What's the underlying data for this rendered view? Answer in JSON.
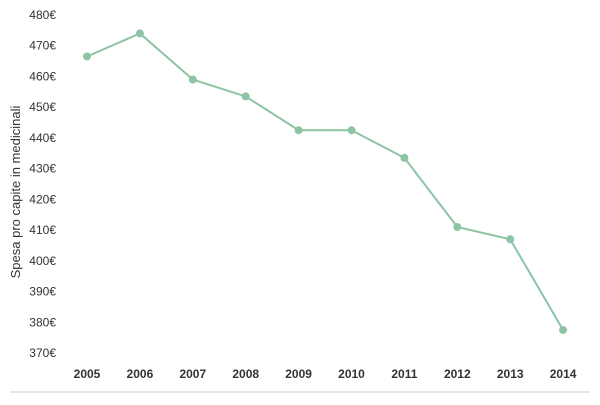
{
  "chart_data": {
    "type": "line",
    "title": "",
    "xlabel": "",
    "ylabel": "Spesa pro capite in medicinali",
    "y_unit_suffix": "€",
    "ylim": [
      370,
      480
    ],
    "y_ticks": [
      370,
      380,
      390,
      400,
      410,
      420,
      430,
      440,
      450,
      460,
      470,
      480
    ],
    "categories": [
      "2005",
      "2006",
      "2007",
      "2008",
      "2009",
      "2010",
      "2011",
      "2012",
      "2013",
      "2014"
    ],
    "series": [
      {
        "values": [
          466.5,
          474,
          459,
          453.5,
          442.5,
          442.5,
          433.5,
          411,
          407,
          377.5
        ],
        "color": "#8dc4a4"
      }
    ],
    "grid": false,
    "legend": "none",
    "baseline_color": "#cccccc"
  }
}
